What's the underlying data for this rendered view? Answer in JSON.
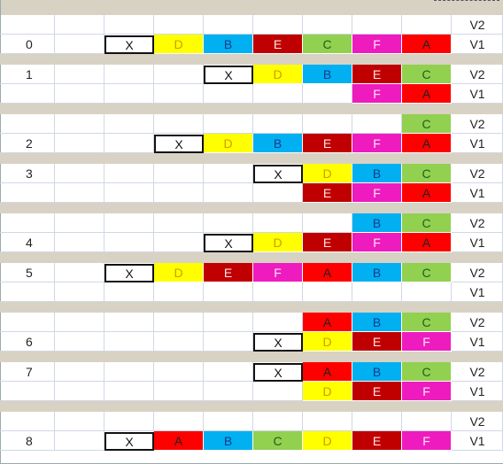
{
  "sheet": {
    "versions": {
      "v2": "V2",
      "v1": "V1"
    },
    "colors": {
      "X": "#ffffff",
      "D": "#ffff00",
      "B": "#00b0f0",
      "E": "#c00000",
      "C": "#92d050",
      "F": "#ee1bbf",
      "A": "#ff0000"
    },
    "textColors": {
      "X": "#111111",
      "D": "#c9a000",
      "B": "#1a3a8a",
      "E": "#ffe6e6",
      "C": "#1f5f1f",
      "F": "#ffe6f6",
      "A": "#222222"
    },
    "groups": [
      {
        "label": "0",
        "rows": [
          {
            "v": "V2",
            "cells": []
          },
          {
            "v": "V1",
            "label": "0",
            "cells": [
              [
                2,
                "X"
              ],
              [
                3,
                "D"
              ],
              [
                4,
                "B"
              ],
              [
                5,
                "E"
              ],
              [
                6,
                "C"
              ],
              [
                7,
                "F"
              ],
              [
                8,
                "A"
              ]
            ]
          }
        ]
      },
      {
        "label": "1",
        "rows": [
          {
            "v": "V2",
            "label": "1",
            "cells": [
              [
                4,
                "X"
              ],
              [
                5,
                "D"
              ],
              [
                6,
                "B"
              ],
              [
                7,
                "E"
              ],
              [
                8,
                "C"
              ]
            ]
          },
          {
            "v": "V1",
            "cells": [
              [
                7,
                "F"
              ],
              [
                8,
                "A"
              ]
            ]
          }
        ]
      },
      {
        "label": "2",
        "rows": [
          {
            "v": "V2",
            "cells": [
              [
                8,
                "C"
              ]
            ]
          },
          {
            "v": "V1",
            "label": "2",
            "cells": [
              [
                3,
                "X"
              ],
              [
                4,
                "D"
              ],
              [
                5,
                "B"
              ],
              [
                6,
                "E"
              ],
              [
                7,
                "F"
              ],
              [
                8,
                "A"
              ]
            ]
          }
        ]
      },
      {
        "label": "3",
        "rows": [
          {
            "v": "V2",
            "label": "3",
            "cells": [
              [
                5,
                "X"
              ],
              [
                6,
                "D"
              ],
              [
                7,
                "B"
              ],
              [
                8,
                "C"
              ]
            ]
          },
          {
            "v": "V1",
            "cells": [
              [
                6,
                "E"
              ],
              [
                7,
                "F"
              ],
              [
                8,
                "A"
              ]
            ]
          }
        ]
      },
      {
        "label": "4",
        "rows": [
          {
            "v": "V2",
            "cells": [
              [
                7,
                "B"
              ],
              [
                8,
                "C"
              ]
            ]
          },
          {
            "v": "V1",
            "label": "4",
            "cells": [
              [
                4,
                "X"
              ],
              [
                5,
                "D"
              ],
              [
                6,
                "E"
              ],
              [
                7,
                "F"
              ],
              [
                8,
                "A"
              ]
            ]
          }
        ]
      },
      {
        "label": "5",
        "rows": [
          {
            "v": "V2",
            "label": "5",
            "cells": [
              [
                2,
                "X"
              ],
              [
                3,
                "D"
              ],
              [
                4,
                "E"
              ],
              [
                5,
                "F"
              ],
              [
                6,
                "A"
              ],
              [
                7,
                "B"
              ],
              [
                8,
                "C"
              ]
            ]
          },
          {
            "v": "V1",
            "cells": []
          }
        ]
      },
      {
        "label": "6",
        "rows": [
          {
            "v": "V2",
            "cells": [
              [
                6,
                "A"
              ],
              [
                7,
                "B"
              ],
              [
                8,
                "C"
              ]
            ]
          },
          {
            "v": "V1",
            "label": "6",
            "cells": [
              [
                5,
                "X"
              ],
              [
                6,
                "D"
              ],
              [
                7,
                "E"
              ],
              [
                8,
                "F"
              ]
            ]
          }
        ]
      },
      {
        "label": "7",
        "rows": [
          {
            "v": "V2",
            "label": "7",
            "cells": [
              [
                5,
                "X"
              ],
              [
                6,
                "A"
              ],
              [
                7,
                "B"
              ],
              [
                8,
                "C"
              ]
            ]
          },
          {
            "v": "V1",
            "cells": [
              [
                6,
                "D"
              ],
              [
                7,
                "E"
              ],
              [
                8,
                "F"
              ]
            ]
          }
        ]
      },
      {
        "label": "8",
        "rows": [
          {
            "v": "V2",
            "cells": []
          },
          {
            "v": "V1",
            "label": "8",
            "cells": [
              [
                2,
                "X"
              ],
              [
                3,
                "A"
              ],
              [
                4,
                "B"
              ],
              [
                5,
                "C"
              ],
              [
                6,
                "D"
              ],
              [
                7,
                "E"
              ],
              [
                8,
                "F"
              ]
            ]
          }
        ]
      }
    ]
  }
}
